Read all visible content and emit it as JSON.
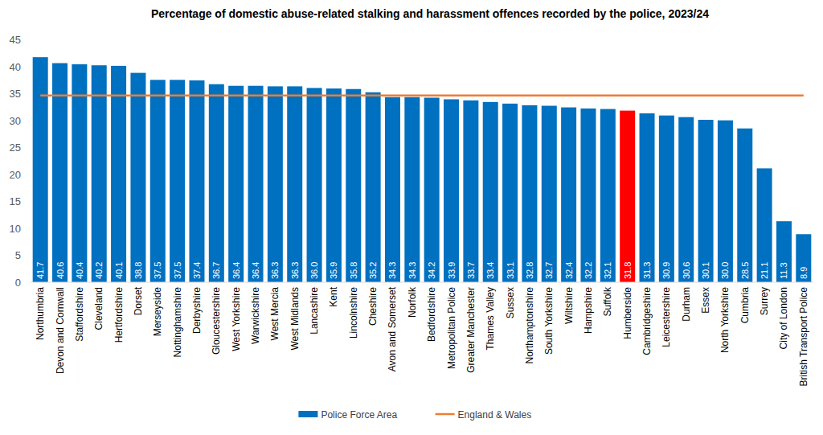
{
  "chart_data": {
    "type": "bar",
    "title": "Percentage of domestic abuse-related stalking and harassment offences recorded by the police, 2023/24",
    "categories": [
      "Northumbria",
      "Devon and Cornwall",
      "Staffordshire",
      "Cleveland",
      "Hertfordshire",
      "Dorset",
      "Merseyside",
      "Nottinghamshire",
      "Derbyshire",
      "Gloucestershire",
      "West Yorkshire",
      "Warwickshire",
      "West Mercia",
      "West Midlands",
      "Lancashire",
      "Kent",
      "Lincolnshire",
      "Cheshire",
      "Avon and Somerset",
      "Norfolk",
      "Bedfordshire",
      "Metropolitan Police",
      "Greater Manchester",
      "Thames Valley",
      "Sussex",
      "Northamptonshire",
      "South Yorkshire",
      "Wiltshire",
      "Hampshire",
      "Suffolk",
      "Humberside",
      "Cambridgeshire",
      "Leicestershire",
      "Durham",
      "Essex",
      "North Yorkshire",
      "Cumbria",
      "Surrey",
      "City of London",
      "British Transport Police"
    ],
    "series": [
      {
        "name": "Police Force Area",
        "type": "bar",
        "color": "#0070c0",
        "colors": [
          "#0070c0",
          "#0070c0",
          "#0070c0",
          "#0070c0",
          "#0070c0",
          "#0070c0",
          "#0070c0",
          "#0070c0",
          "#0070c0",
          "#0070c0",
          "#0070c0",
          "#0070c0",
          "#0070c0",
          "#0070c0",
          "#0070c0",
          "#0070c0",
          "#0070c0",
          "#0070c0",
          "#0070c0",
          "#0070c0",
          "#0070c0",
          "#0070c0",
          "#0070c0",
          "#0070c0",
          "#0070c0",
          "#0070c0",
          "#0070c0",
          "#0070c0",
          "#0070c0",
          "#0070c0",
          "#ff0000",
          "#0070c0",
          "#0070c0",
          "#0070c0",
          "#0070c0",
          "#0070c0",
          "#0070c0",
          "#0070c0",
          "#0070c0",
          "#0070c0"
        ],
        "values": [
          41.7,
          40.6,
          40.4,
          40.2,
          40.1,
          38.8,
          37.5,
          37.5,
          37.4,
          36.7,
          36.4,
          36.4,
          36.3,
          36.3,
          36.0,
          35.9,
          35.8,
          35.2,
          34.3,
          34.3,
          34.2,
          33.9,
          33.7,
          33.4,
          33.1,
          32.8,
          32.7,
          32.4,
          32.2,
          32.1,
          31.8,
          31.3,
          30.9,
          30.6,
          30.1,
          30.0,
          28.5,
          21.1,
          11.3,
          8.9
        ],
        "value_labels": [
          "41.7",
          "40.6",
          "40.4",
          "40.2",
          "40.1",
          "38.8",
          "37.5",
          "37.5",
          "37.4",
          "36.7",
          "36.4",
          "36.4",
          "36.3",
          "36.3",
          "36.0",
          "35.9",
          "35.8",
          "35.2",
          "34.3",
          "34.3",
          "34.2",
          "33.9",
          "33.7",
          "33.4",
          "33.1",
          "32.8",
          "32.7",
          "32.4",
          "32.2",
          "32.1",
          "31.8",
          "31.3",
          "30.9",
          "30.6",
          "30.1",
          "30.0",
          "28.5",
          "21.1",
          "11.3",
          "8.9"
        ]
      },
      {
        "name": "England & Wales",
        "type": "line",
        "color": "#ed7d31",
        "values": [
          34.6,
          34.6,
          34.6,
          34.6,
          34.6,
          34.6,
          34.6,
          34.6,
          34.6,
          34.6,
          34.6,
          34.6,
          34.6,
          34.6,
          34.6,
          34.6,
          34.6,
          34.6,
          34.6,
          34.6,
          34.6,
          34.6,
          34.6,
          34.6,
          34.6,
          34.6,
          34.6,
          34.6,
          34.6,
          34.6,
          34.6,
          34.6,
          34.6,
          34.6,
          34.6,
          34.6,
          34.6,
          34.6,
          34.6,
          34.6
        ]
      }
    ],
    "ylim": [
      0,
      45
    ],
    "yticks": [
      0,
      5,
      10,
      15,
      20,
      25,
      30,
      35,
      40,
      45
    ],
    "grid": false,
    "data_labels": true,
    "legend": "bottom"
  }
}
